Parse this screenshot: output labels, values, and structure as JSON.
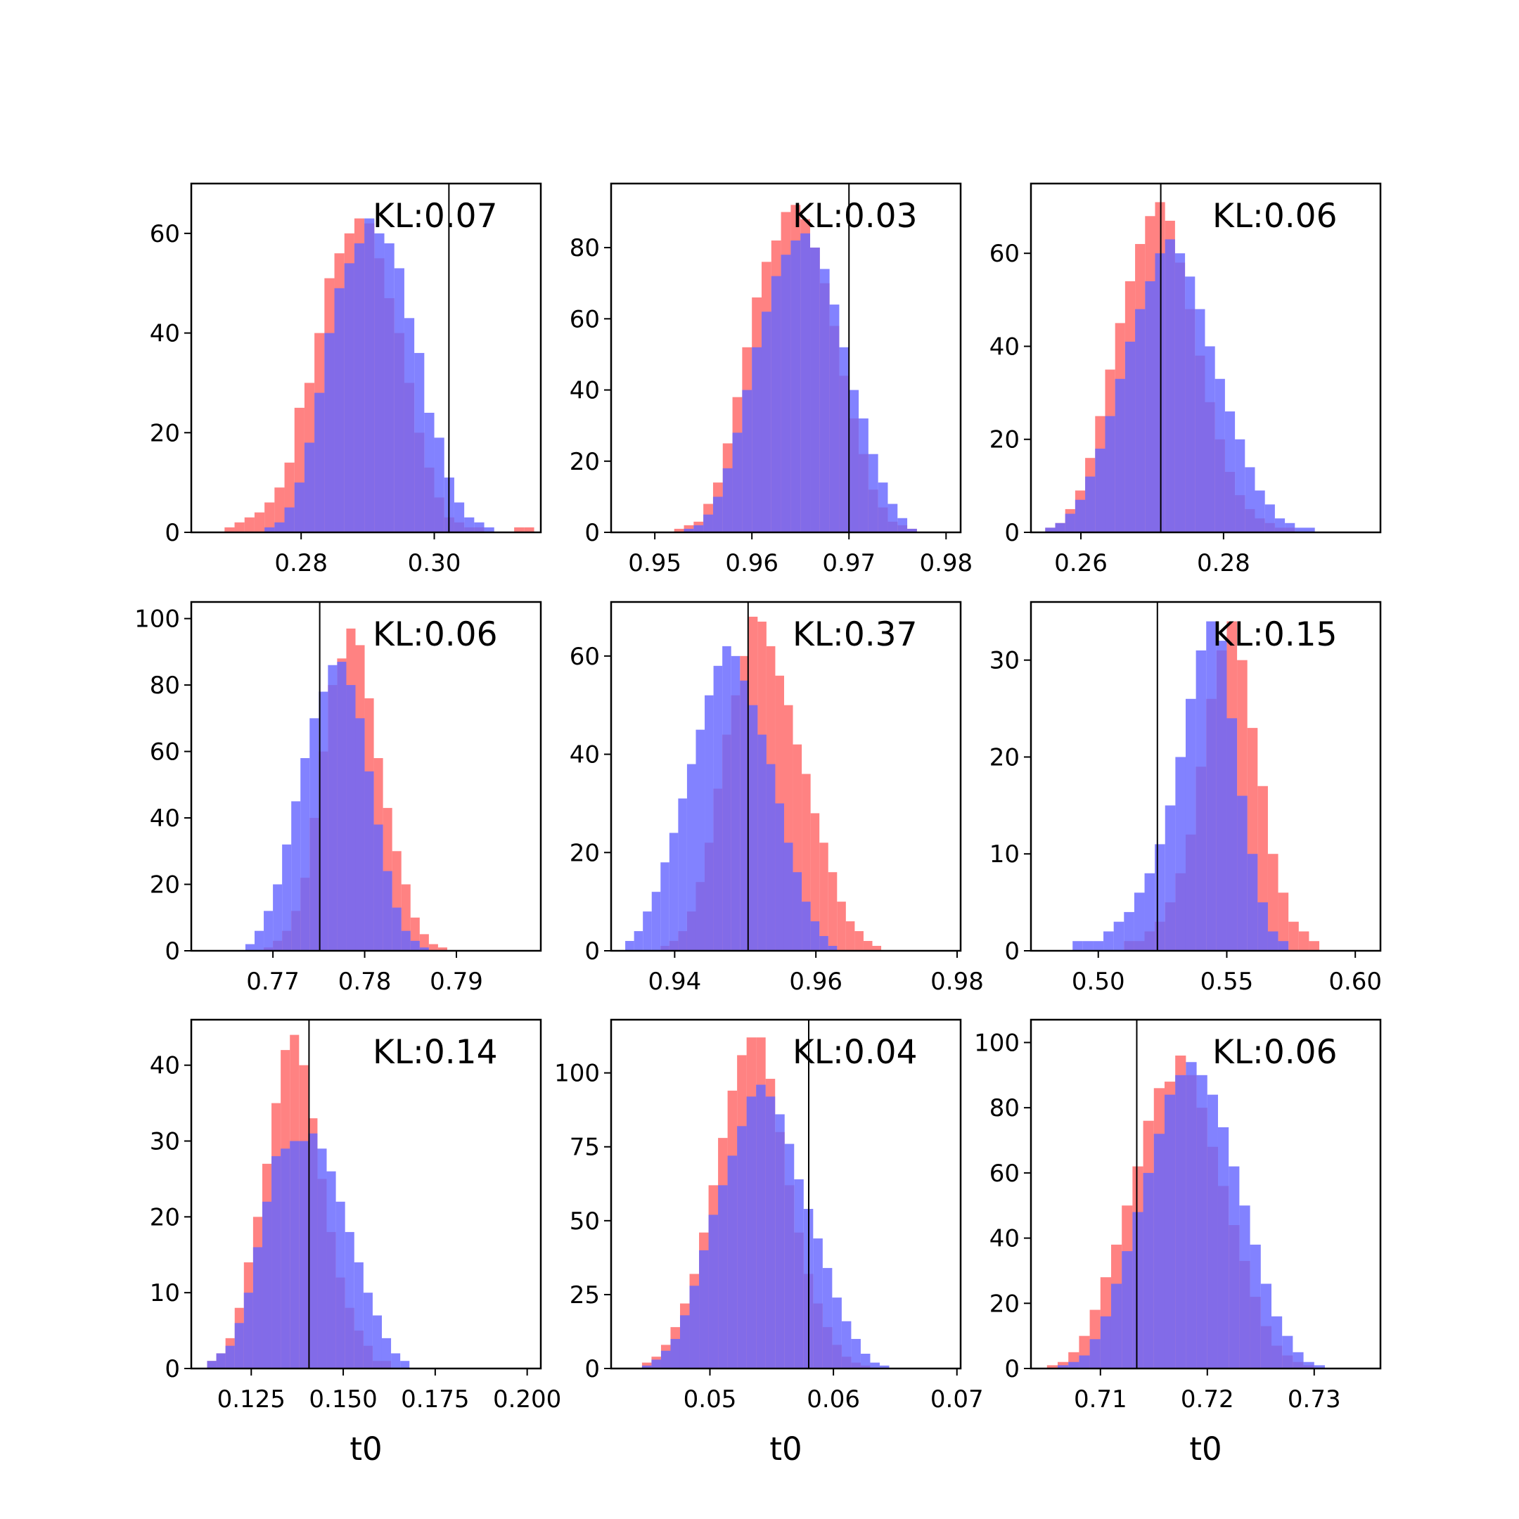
{
  "figure": {
    "panel_rows": 3,
    "panel_cols": 3
  },
  "colors": {
    "prior": "#ff6666",
    "posterior": "#6666ff",
    "overlap": "#7a3bbd",
    "truth_line": "#000000"
  },
  "chart_data": [
    {
      "type": "histogram",
      "kl_text": "KL:0.07",
      "xlabel": "",
      "xlim": [
        0.2635,
        0.316
      ],
      "ylim": [
        0,
        70
      ],
      "xticks": [
        0.28,
        0.3
      ],
      "xtick_labels": [
        "0.28",
        "0.30"
      ],
      "yticks": [
        0,
        20,
        40,
        60
      ],
      "ytick_labels": [
        "0",
        "20",
        "40",
        "60"
      ],
      "truth": 0.3022,
      "bin_start": 0.2685,
      "bin_width": 0.0015,
      "red": [
        1,
        2,
        3,
        4,
        6,
        9,
        14,
        25,
        30,
        40,
        51,
        56,
        60,
        63,
        62,
        55,
        47,
        40,
        30,
        20,
        13,
        7,
        3,
        2,
        1,
        1,
        0,
        0,
        0,
        1,
        1
      ],
      "blue": [
        0,
        0,
        0,
        0,
        1,
        2,
        5,
        10,
        18,
        28,
        40,
        49,
        54,
        58,
        63,
        60,
        58,
        53,
        43,
        36,
        24,
        19,
        11,
        6,
        3,
        2,
        1,
        0,
        0,
        0,
        0
      ]
    },
    {
      "type": "histogram",
      "kl_text": "KL:0.03",
      "xlabel": "",
      "xlim": [
        0.9455,
        0.9815
      ],
      "ylim": [
        0,
        98
      ],
      "xticks": [
        0.95,
        0.96,
        0.97,
        0.98
      ],
      "xtick_labels": [
        "0.95",
        "0.96",
        "0.97",
        "0.98"
      ],
      "yticks": [
        0,
        20,
        40,
        60,
        80
      ],
      "ytick_labels": [
        "0",
        "20",
        "40",
        "60",
        "80"
      ],
      "truth": 0.97,
      "bin_start": 0.949,
      "bin_width": 0.001,
      "red": [
        0,
        0,
        0,
        1,
        2,
        3,
        8,
        14,
        25,
        38,
        52,
        66,
        76,
        82,
        90,
        92,
        88,
        80,
        70,
        58,
        44,
        32,
        22,
        12,
        7,
        3,
        2,
        1
      ],
      "blue": [
        0,
        0,
        0,
        0,
        1,
        2,
        5,
        10,
        18,
        28,
        40,
        52,
        62,
        72,
        78,
        82,
        84,
        80,
        74,
        64,
        52,
        40,
        32,
        22,
        14,
        8,
        4,
        1
      ]
    },
    {
      "type": "histogram",
      "kl_text": "KL:0.06",
      "xlabel": "",
      "xlim": [
        0.253,
        0.302
      ],
      "ylim": [
        0,
        75
      ],
      "xticks": [
        0.26,
        0.28
      ],
      "xtick_labels": [
        "0.26",
        "0.28"
      ],
      "yticks": [
        0,
        20,
        40,
        60
      ],
      "ytick_labels": [
        "0",
        "20",
        "40",
        "60"
      ],
      "truth": 0.2712,
      "bin_start": 0.255,
      "bin_width": 0.0014,
      "red": [
        1,
        2,
        5,
        9,
        16,
        25,
        35,
        45,
        54,
        62,
        68,
        71,
        67,
        58,
        48,
        38,
        28,
        20,
        13,
        8,
        5,
        3,
        2,
        1,
        1,
        0,
        0,
        0,
        0,
        0
      ],
      "blue": [
        1,
        2,
        4,
        7,
        12,
        18,
        25,
        33,
        41,
        48,
        54,
        60,
        63,
        60,
        55,
        48,
        40,
        33,
        26,
        20,
        14,
        9,
        6,
        3,
        2,
        1,
        1,
        0,
        0,
        0
      ]
    },
    {
      "type": "histogram",
      "kl_text": "KL:0.06",
      "xlabel": "",
      "xlim": [
        0.7611,
        0.7992
      ],
      "ylim": [
        0,
        105
      ],
      "xticks": [
        0.77,
        0.78,
        0.79
      ],
      "xtick_labels": [
        "0.77",
        "0.78",
        "0.79"
      ],
      "yticks": [
        0,
        20,
        40,
        60,
        80,
        100
      ],
      "ytick_labels": [
        "0",
        "20",
        "40",
        "60",
        "80",
        "100"
      ],
      "truth": 0.7751,
      "bin_start": 0.767,
      "bin_width": 0.001,
      "red": [
        0,
        0,
        1,
        3,
        6,
        12,
        22,
        40,
        60,
        80,
        88,
        97,
        92,
        76,
        58,
        43,
        30,
        20,
        10,
        5,
        2,
        1
      ],
      "blue": [
        2,
        6,
        12,
        20,
        32,
        45,
        58,
        70,
        78,
        86,
        87,
        80,
        70,
        54,
        38,
        24,
        13,
        6,
        3,
        1,
        0,
        0
      ]
    },
    {
      "type": "histogram",
      "kl_text": "KL:0.37",
      "xlabel": "",
      "xlim": [
        0.931,
        0.9805
      ],
      "ylim": [
        0,
        71
      ],
      "xticks": [
        0.94,
        0.96,
        0.98
      ],
      "xtick_labels": [
        "0.94",
        "0.96",
        "0.98"
      ],
      "yticks": [
        0,
        20,
        40,
        60
      ],
      "ytick_labels": [
        "0",
        "20",
        "40",
        "60"
      ],
      "truth": 0.9504,
      "bin_start": 0.933,
      "bin_width": 0.00125,
      "red": [
        0,
        0,
        0,
        0,
        1,
        2,
        4,
        8,
        14,
        22,
        33,
        44,
        52,
        60,
        68,
        67,
        62,
        56,
        50,
        42,
        36,
        28,
        22,
        16,
        10,
        6,
        4,
        2,
        1,
        0,
        0,
        0
      ],
      "blue": [
        2,
        4,
        8,
        12,
        18,
        24,
        31,
        38,
        45,
        52,
        58,
        62,
        60,
        55,
        50,
        44,
        38,
        30,
        22,
        16,
        10,
        6,
        3,
        1,
        0,
        0,
        0,
        0,
        0,
        0,
        0,
        0
      ]
    },
    {
      "type": "histogram",
      "kl_text": "KL:0.15",
      "xlabel": "",
      "xlim": [
        0.4738,
        0.6098
      ],
      "ylim": [
        0,
        36
      ],
      "xticks": [
        0.5,
        0.55,
        0.6
      ],
      "xtick_labels": [
        "0.50",
        "0.55",
        "0.60"
      ],
      "yticks": [
        0,
        10,
        20,
        30
      ],
      "ytick_labels": [
        "0",
        "10",
        "20",
        "30"
      ],
      "truth": 0.523,
      "bin_start": 0.49,
      "bin_width": 0.004,
      "red": [
        0,
        0,
        0,
        0,
        0,
        1,
        1,
        2,
        3,
        5,
        8,
        12,
        19,
        26,
        31,
        34,
        30,
        23,
        17,
        10,
        6,
        3,
        2,
        1,
        0
      ],
      "blue": [
        1,
        1,
        1,
        2,
        3,
        4,
        6,
        8,
        11,
        15,
        20,
        26,
        31,
        34,
        32,
        24,
        16,
        10,
        5,
        2,
        1,
        0,
        0,
        0,
        0
      ]
    },
    {
      "type": "histogram",
      "kl_text": "KL:0.14",
      "xlabel": "t0",
      "xlim": [
        0.1087,
        0.2037
      ],
      "ylim": [
        0,
        46
      ],
      "xticks": [
        0.125,
        0.15,
        0.175,
        0.2
      ],
      "xtick_labels": [
        "0.125",
        "0.150",
        "0.175",
        "0.200"
      ],
      "yticks": [
        0,
        10,
        20,
        30,
        40
      ],
      "ytick_labels": [
        "0",
        "10",
        "20",
        "30",
        "40"
      ],
      "truth": 0.1407,
      "bin_start": 0.113,
      "bin_width": 0.0025,
      "red": [
        1,
        2,
        4,
        8,
        14,
        20,
        27,
        35,
        42,
        44,
        40,
        33,
        25,
        18,
        12,
        8,
        5,
        3,
        1,
        1,
        0,
        0,
        0,
        0,
        0
      ],
      "blue": [
        1,
        2,
        3,
        6,
        10,
        16,
        22,
        28,
        29,
        30,
        30,
        31,
        29,
        26,
        22,
        18,
        14,
        10,
        7,
        4,
        2,
        1,
        0,
        0,
        0
      ]
    },
    {
      "type": "histogram",
      "kl_text": "KL:0.04",
      "xlabel": "t0",
      "xlim": [
        0.042,
        0.0703
      ],
      "ylim": [
        0,
        118
      ],
      "xticks": [
        0.05,
        0.06,
        0.07
      ],
      "xtick_labels": [
        "0.05",
        "0.06",
        "0.07"
      ],
      "yticks": [
        0,
        25,
        50,
        75,
        100
      ],
      "ytick_labels": [
        "0",
        "25",
        "50",
        "75",
        "100"
      ],
      "truth": 0.058,
      "bin_start": 0.0445,
      "bin_width": 0.00077,
      "red": [
        2,
        4,
        8,
        14,
        22,
        32,
        46,
        62,
        78,
        94,
        106,
        112,
        112,
        98,
        80,
        62,
        46,
        32,
        22,
        14,
        8,
        4,
        2,
        1,
        0,
        0
      ],
      "blue": [
        1,
        3,
        6,
        10,
        18,
        28,
        40,
        52,
        62,
        72,
        82,
        92,
        96,
        92,
        86,
        76,
        64,
        54,
        44,
        34,
        24,
        16,
        10,
        5,
        2,
        1
      ]
    },
    {
      "type": "histogram",
      "kl_text": "KL:0.06",
      "xlabel": "t0",
      "xlim": [
        0.7035,
        0.7362
      ],
      "ylim": [
        0,
        107
      ],
      "xticks": [
        0.71,
        0.72,
        0.73
      ],
      "xtick_labels": [
        "0.71",
        "0.72",
        "0.73"
      ],
      "yticks": [
        0,
        20,
        40,
        60,
        80,
        100
      ],
      "ytick_labels": [
        "0",
        "20",
        "40",
        "60",
        "80",
        "100"
      ],
      "truth": 0.7134,
      "bin_start": 0.705,
      "bin_width": 0.001,
      "red": [
        1,
        2,
        5,
        10,
        18,
        28,
        38,
        50,
        62,
        76,
        86,
        88,
        96,
        90,
        80,
        68,
        56,
        44,
        33,
        22,
        13,
        7,
        4,
        2,
        1,
        0,
        0
      ],
      "blue": [
        0,
        1,
        2,
        4,
        9,
        16,
        26,
        36,
        48,
        60,
        72,
        84,
        90,
        94,
        90,
        84,
        74,
        62,
        50,
        38,
        26,
        16,
        10,
        5,
        2,
        1,
        0
      ]
    }
  ]
}
